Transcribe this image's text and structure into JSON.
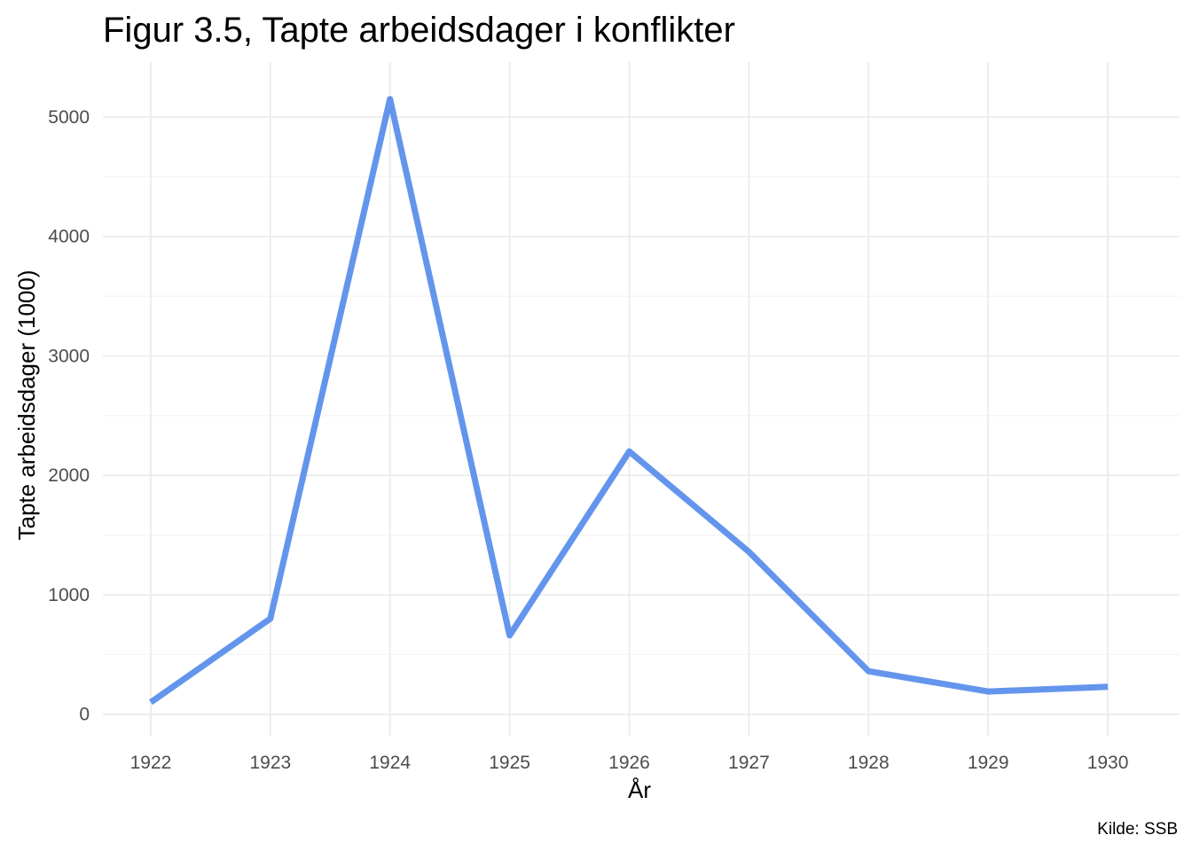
{
  "chart_data": {
    "type": "line",
    "title": "Figur 3.5, Tapte arbeidsdager i konflikter",
    "xlabel": "År",
    "ylabel": "Tapte arbeidsdager (1000)",
    "caption": "Kilde: SSB",
    "x": [
      1922,
      1923,
      1924,
      1925,
      1926,
      1927,
      1928,
      1929,
      1930
    ],
    "x_tick_labels": [
      "1922",
      "1923",
      "1924",
      "1925",
      "1926",
      "1927",
      "1928",
      "1929",
      "1930"
    ],
    "y_tick_values": [
      0,
      1000,
      2000,
      3000,
      4000,
      5000
    ],
    "y_tick_labels": [
      "0",
      "1000",
      "2000",
      "3000",
      "4000",
      "5000"
    ],
    "series": [
      {
        "values": [
          100,
          800,
          5150,
          660,
          2200,
          1360,
          360,
          190,
          230
        ],
        "color": "#6495ed"
      }
    ],
    "xlim": [
      1921.6,
      1930.6
    ],
    "ylim": [
      -180,
      5460
    ],
    "grid": "on",
    "legend": "none"
  }
}
